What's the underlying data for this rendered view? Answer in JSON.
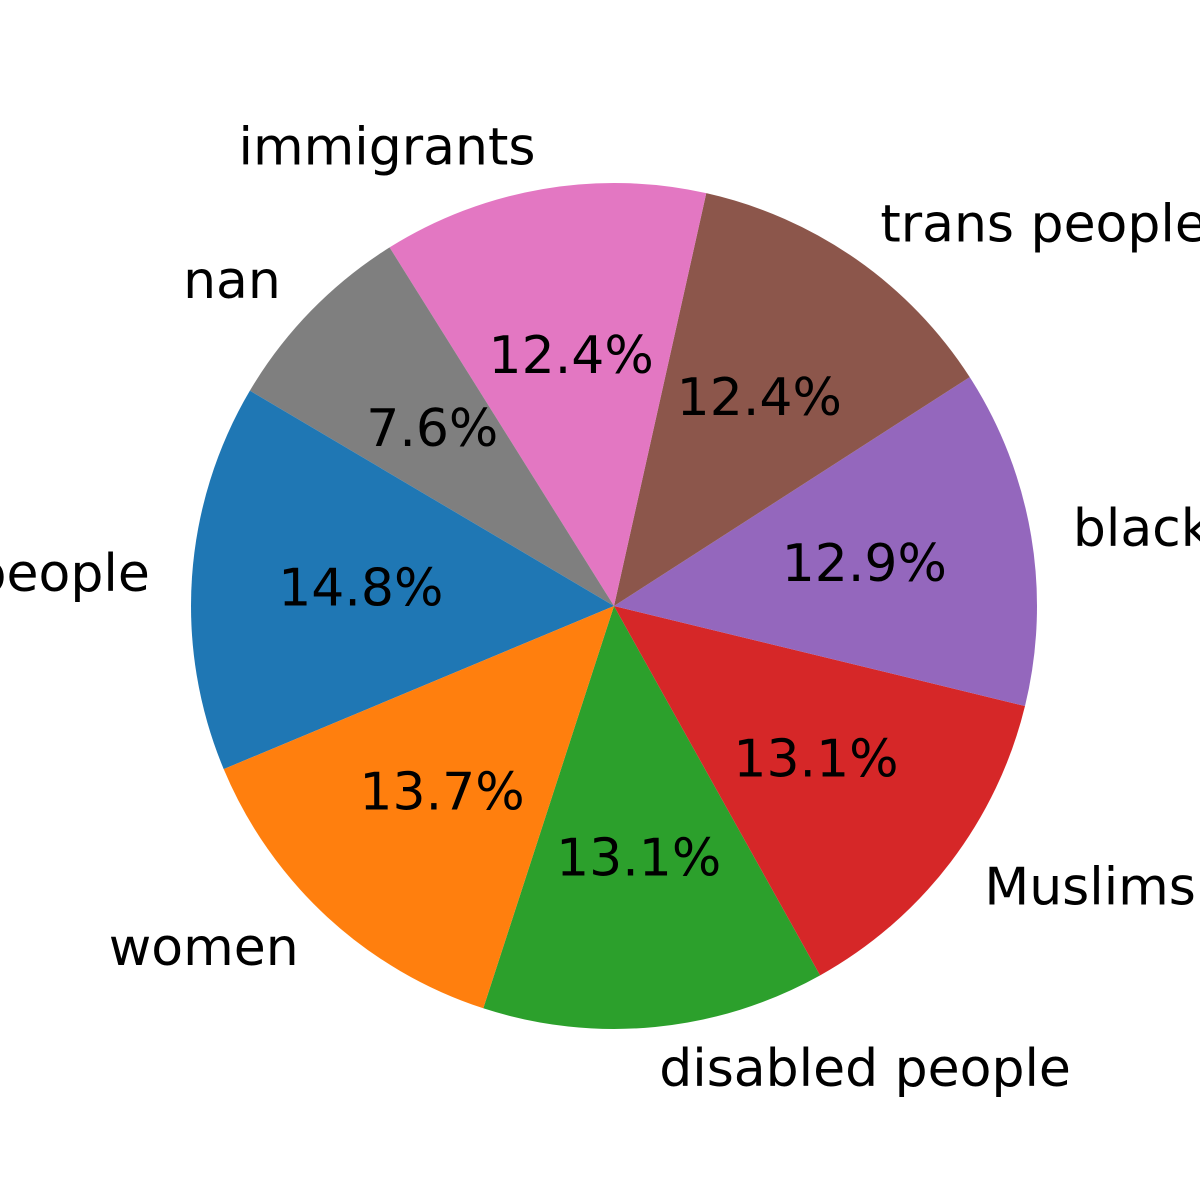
{
  "chart_data": {
    "type": "pie",
    "labels": [
      "disabled people",
      "Muslims",
      "black people",
      "trans people",
      "immigrants",
      "nan",
      "gay people",
      "women"
    ],
    "values": [
      13.1,
      13.1,
      12.9,
      12.4,
      12.4,
      7.6,
      14.8,
      13.7
    ],
    "value_labels": [
      "13.1%",
      "13.1%",
      "12.9%",
      "12.4%",
      "12.4%",
      "7.6%",
      "14.8%",
      "13.7%"
    ],
    "colors": [
      "#2ca02c",
      "#d62728",
      "#9467bd",
      "#8c564b",
      "#e377c2",
      "#7f7f7f",
      "#1f77b4",
      "#ff7f0e"
    ],
    "start_angle_deg": 252,
    "direction": "counterclockwise",
    "legend": "none"
  }
}
